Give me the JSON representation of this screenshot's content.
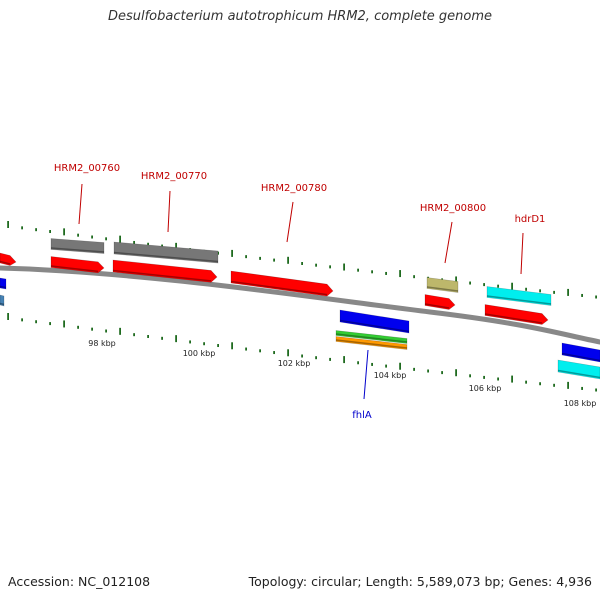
{
  "title": "Desulfobacterium autotrophicum HRM2, complete genome",
  "footer": {
    "accession": "Accession: NC_012108",
    "stats": "Topology: circular; Length: 5,589,073 bp; Genes: 4,936"
  },
  "colors": {
    "backbone": "#888888",
    "tick_dots": "#1f6b1f",
    "label_red": "#c00000",
    "label_blue": "#0000cc",
    "gene_red": "#ff0000",
    "gene_gray": "#777777",
    "gene_blue": "#0000ee",
    "gene_cyan": "#00eeee",
    "gene_khaki": "#bdb76b",
    "gene_green": "#33cc33",
    "gene_orange": "#ff9900",
    "gene_steel": "#4682b4"
  },
  "scale_labels": [
    "98 kbp",
    "100 kbp",
    "102 kbp",
    "104 kbp",
    "106 kbp",
    "108 kbp"
  ],
  "gene_labels": [
    {
      "text": "HRM2_00760",
      "color": "label_red"
    },
    {
      "text": "HRM2_00770",
      "color": "label_red"
    },
    {
      "text": "HRM2_00780",
      "color": "label_red"
    },
    {
      "text": "HRM2_00800",
      "color": "label_red"
    },
    {
      "text": "hdrD1",
      "color": "label_red"
    },
    {
      "text": "fhlA",
      "color": "label_blue"
    }
  ]
}
